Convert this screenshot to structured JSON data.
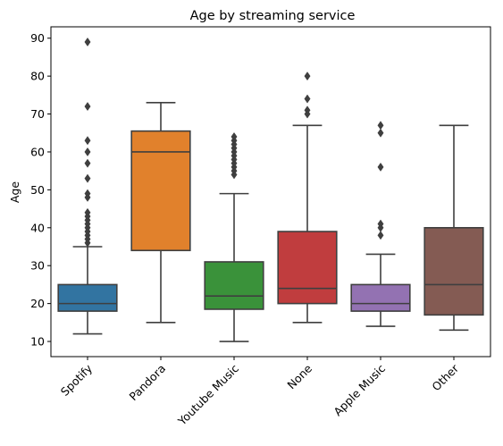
{
  "chart_data": {
    "type": "box",
    "title": "Age by streaming service",
    "xlabel": "",
    "ylabel": "Age",
    "ylim": [
      6,
      93
    ],
    "yticks": [
      10,
      20,
      30,
      40,
      50,
      60,
      70,
      80,
      90
    ],
    "grid": false,
    "categories": [
      "Spotify",
      "Pandora",
      "Youtube Music",
      "None",
      "Apple Music",
      "Other"
    ],
    "series": [
      {
        "category": "Spotify",
        "color": "#3274a1",
        "whisker_low": 12,
        "q1": 18,
        "median": 20,
        "q3": 25,
        "whisker_high": 35,
        "outliers": [
          36,
          37,
          38,
          39,
          40,
          41,
          42,
          43,
          44,
          48,
          49,
          53,
          57,
          60,
          63,
          72,
          89
        ]
      },
      {
        "category": "Pandora",
        "color": "#e1812c",
        "whisker_low": 15,
        "q1": 34,
        "median": 60,
        "q3": 65.5,
        "whisker_high": 73,
        "outliers": []
      },
      {
        "category": "Youtube Music",
        "color": "#3a923a",
        "whisker_low": 10,
        "q1": 18.5,
        "median": 22,
        "q3": 31,
        "whisker_high": 49,
        "outliers": [
          54,
          55,
          56,
          57,
          58,
          59,
          60,
          61,
          62,
          63,
          64
        ]
      },
      {
        "category": "None",
        "color": "#c03d3e",
        "whisker_low": 15,
        "q1": 20,
        "median": 24,
        "q3": 39,
        "whisker_high": 67,
        "outliers": [
          70,
          71,
          74,
          80
        ]
      },
      {
        "category": "Apple Music",
        "color": "#9372b2",
        "whisker_low": 14,
        "q1": 18,
        "median": 20,
        "q3": 25,
        "whisker_high": 33,
        "outliers": [
          38,
          40,
          41,
          56,
          65,
          67
        ]
      },
      {
        "category": "Other",
        "color": "#845b53",
        "whisker_low": 13,
        "q1": 17,
        "median": 25,
        "q3": 40,
        "whisker_high": 67,
        "outliers": []
      }
    ]
  }
}
